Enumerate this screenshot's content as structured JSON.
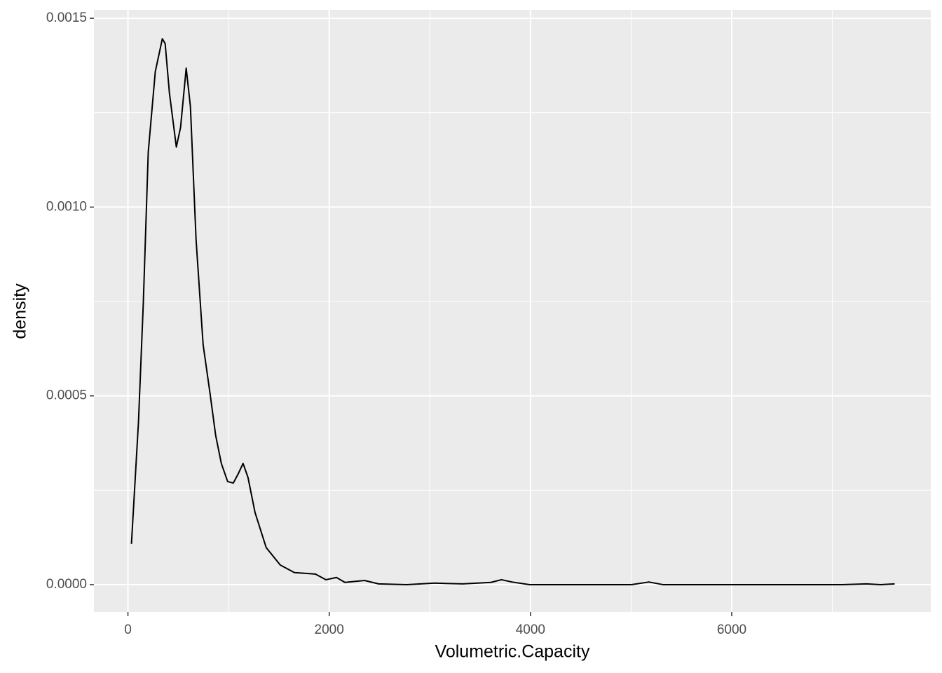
{
  "chart_data": {
    "type": "line",
    "x_label": "Volumetric.Capacity",
    "y_label": "density",
    "x": [
      35,
      105,
      153,
      202,
      272,
      342,
      370,
      412,
      481,
      523,
      579,
      621,
      677,
      747,
      816,
      872,
      928,
      991,
      1047,
      1095,
      1144,
      1193,
      1263,
      1374,
      1514,
      1654,
      1863,
      1968,
      2072,
      2156,
      2351,
      2491,
      2770,
      3049,
      3328,
      3607,
      3712,
      3816,
      3991,
      5003,
      5177,
      5316,
      5700,
      7096,
      7340,
      7480,
      7619
    ],
    "series": [
      {
        "color": "#000000",
        "values": [
          0.000108,
          0.000432,
          0.000747,
          0.001146,
          0.001359,
          0.001446,
          0.001433,
          0.001303,
          0.001159,
          0.001211,
          0.001368,
          0.001266,
          0.000914,
          0.000636,
          0.000506,
          0.000395,
          0.000321,
          0.000273,
          0.000269,
          0.000293,
          0.000321,
          0.000284,
          0.000191,
          9.8e-05,
          5.2e-05,
          3.2e-05,
          2.8e-05,
          1.3e-05,
          1.9e-05,
          6e-06,
          1.1e-05,
          2e-06,
          0,
          4e-06,
          2e-06,
          6e-06,
          1.3e-05,
          7e-06,
          0,
          0,
          7e-06,
          0,
          0,
          0,
          2e-06,
          0,
          2e-06
        ]
      }
    ],
    "xlim": [
      -338,
      7978
    ],
    "ylim": [
      -7.25e-05,
      0.0015225
    ],
    "xticks": [
      0,
      2000,
      4000,
      6000
    ],
    "x_minor_ticks": [
      1000,
      3000,
      5000,
      7000
    ],
    "yticks": [
      {
        "value": 0,
        "label": "0.0000"
      },
      {
        "value": 0.0005,
        "label": "0.0005"
      },
      {
        "value": 0.001,
        "label": "0.0010"
      },
      {
        "value": 0.0015,
        "label": "0.0015"
      }
    ],
    "y_minor_ticks": [
      0.00025,
      0.00075,
      0.00125
    ],
    "grid": true
  }
}
